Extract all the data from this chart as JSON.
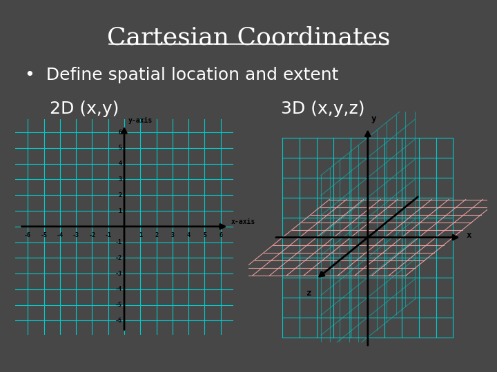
{
  "bg_color": "#474747",
  "title": "Cartesian Coordinates",
  "title_color": "#ffffff",
  "title_fontsize": 26,
  "bullet_text": "Define spatial location and extent",
  "bullet_color": "#ffffff",
  "bullet_fontsize": 18,
  "label_2d": "2D (x,y)",
  "label_3d": "3D (x,y,z)",
  "label_color": "#ffffff",
  "label_fontsize": 18,
  "plot_bg": "#ffffff",
  "grid_color_2d": "#00cccc",
  "grid_color_3d_xy": "#00cccc",
  "grid_color_3d_xz": "#ffaaaa",
  "grid_color_3d_yz": "#00cccc",
  "axis_color": "#000000",
  "axis_lw": 2.0,
  "grid_lw": 0.8,
  "range2d": 6,
  "range3d": 5,
  "proj_zx": -0.55,
  "proj_zy": -0.38
}
